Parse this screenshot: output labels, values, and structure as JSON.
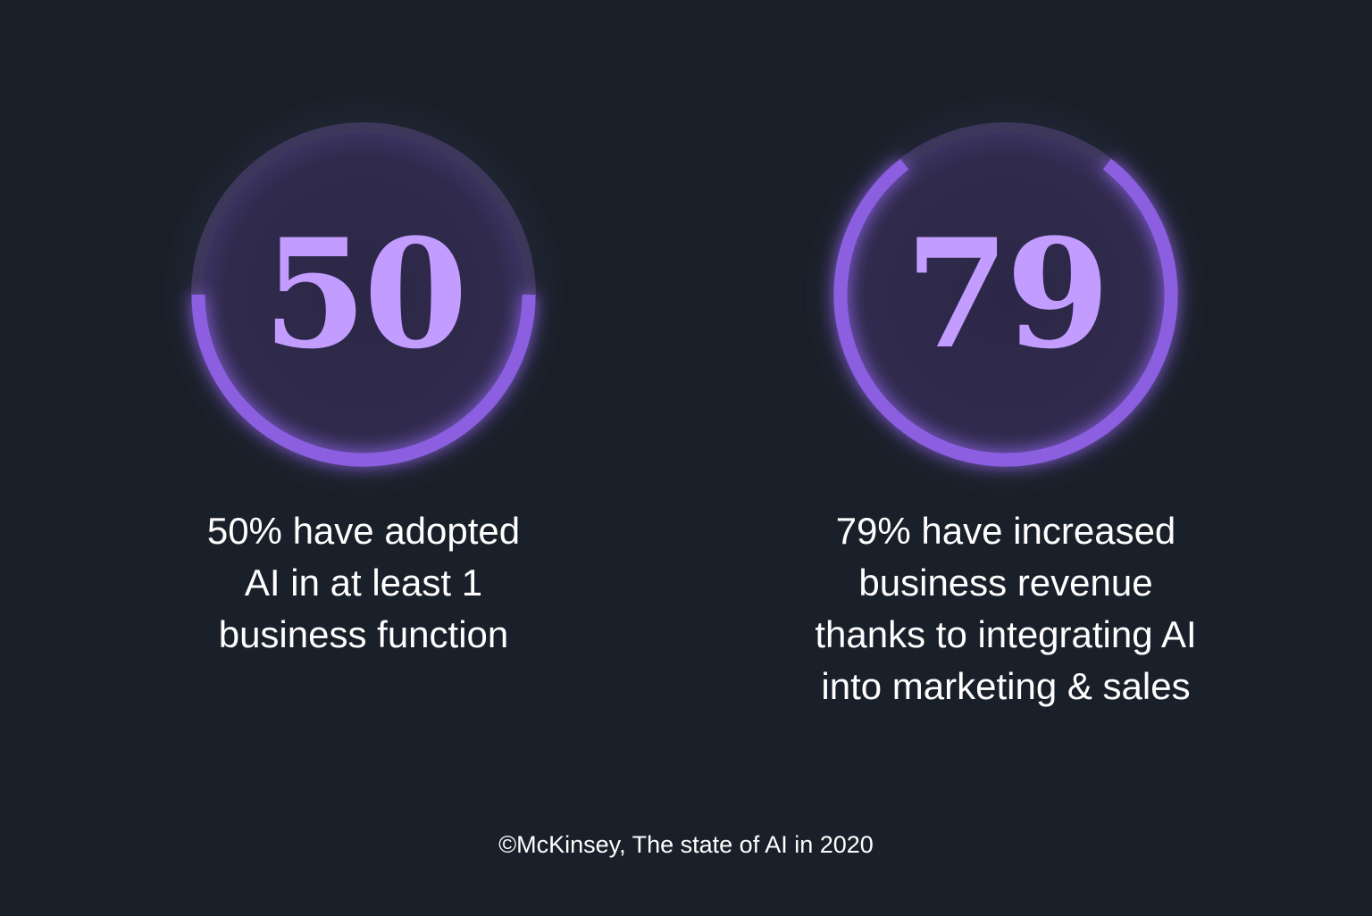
{
  "chart_data": {
    "type": "gauge",
    "max": 100,
    "items": [
      {
        "value": 50,
        "label": "50",
        "caption_lines": [
          "50% have adopted",
          "AI in at least 1",
          "business function"
        ]
      },
      {
        "value": 79,
        "label": "79",
        "caption_lines": [
          "79% have increased",
          "business revenue",
          "thanks to integrating AI",
          "into marketing & sales"
        ]
      }
    ],
    "source": "©McKinsey, The state of AI in 2020"
  },
  "colors": {
    "background": "#1a2029",
    "disc": "#302a4c",
    "track": "#3e375c",
    "progress": "#8b5fe0",
    "number": "#c39cff",
    "text": "#ffffff"
  }
}
